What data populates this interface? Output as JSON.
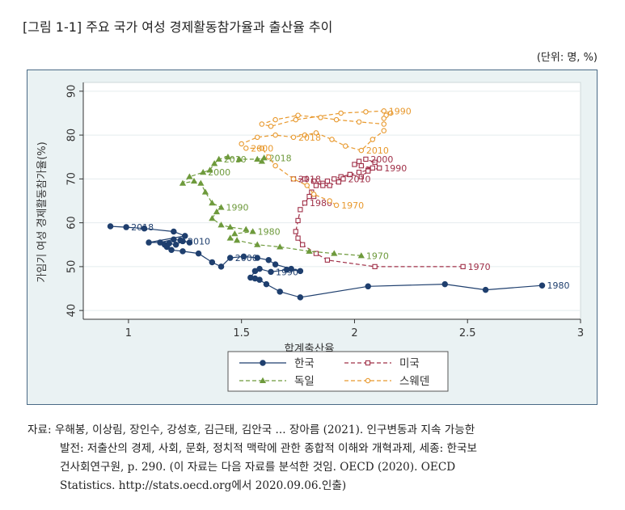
{
  "title": "[그림 1-1] 주요 국가 여성 경제활동참가율과 출산율 추이",
  "unit": "(단위: 명, %)",
  "source": {
    "line1": "자료: 우해봉, 이상림, 장인수, 강성호, 김근태, 김안국 ... 장아름 (2021). 인구변동과 지속 가능한",
    "line2": "발전: 저출산의 경제, 사회, 문화, 정치적 맥락에 관한 종합적 이해와 개혁과제, 세종: 한국보",
    "line3": "건사회연구원, p. 290. (이 자료는 다음 자료를 분석한 것임. OECD (2020). OECD",
    "line4": "Statistics. http://stats.oecd.org에서 2020.09.06.인출)"
  },
  "colors": {
    "korea": "#1f3f6e",
    "usa": "#a03048",
    "germany": "#6e9a3c",
    "sweden": "#e8992e",
    "plot_bg": "#ffffff",
    "frame_bg": "#eaf2f3",
    "grid": "#e4ecee"
  },
  "chart_data": {
    "type": "scatter",
    "xlabel": "합계출산율",
    "ylabel": "가임기 여성 경제활동참가율(%)",
    "xlim": [
      0.8,
      3.0
    ],
    "ylim": [
      38,
      92
    ],
    "xticks": [
      1,
      1.5,
      2,
      2.5,
      3
    ],
    "xtick_labels": [
      "1",
      "1.5",
      "2",
      "2.5",
      "3"
    ],
    "yticks": [
      40,
      50,
      60,
      70,
      80,
      90
    ],
    "ytick_labels": [
      "40",
      "50",
      "60",
      "70",
      "80",
      "90"
    ],
    "grid": true,
    "legend_position": "bottom",
    "series": [
      {
        "name": "한국",
        "color_key": "korea",
        "marker": "circle",
        "filled": true,
        "line": "solid",
        "points": [
          [
            2.83,
            45.7
          ],
          [
            2.58,
            44.7
          ],
          [
            2.4,
            46.0
          ],
          [
            2.06,
            45.5
          ],
          [
            1.76,
            43.0
          ],
          [
            1.67,
            44.3
          ],
          [
            1.61,
            46.0
          ],
          [
            1.58,
            47.0
          ],
          [
            1.56,
            47.3
          ],
          [
            1.54,
            47.5
          ],
          [
            1.56,
            49.0
          ],
          [
            1.58,
            49.5
          ],
          [
            1.63,
            48.8
          ],
          [
            1.7,
            49.3
          ],
          [
            1.76,
            49.0
          ],
          [
            1.72,
            49.5
          ],
          [
            1.65,
            50.5
          ],
          [
            1.62,
            51.5
          ],
          [
            1.57,
            52.0
          ],
          [
            1.51,
            52.3
          ],
          [
            1.45,
            52.0
          ],
          [
            1.41,
            50.0
          ],
          [
            1.37,
            51.0
          ],
          [
            1.31,
            53.0
          ],
          [
            1.24,
            53.5
          ],
          [
            1.19,
            53.8
          ],
          [
            1.17,
            54.5
          ],
          [
            1.16,
            55.0
          ],
          [
            1.18,
            55.3
          ],
          [
            1.21,
            55.0
          ],
          [
            1.24,
            55.8
          ],
          [
            1.27,
            55.5
          ],
          [
            1.23,
            56.0
          ],
          [
            1.2,
            56.2
          ],
          [
            1.14,
            55.5
          ],
          [
            1.09,
            55.5
          ],
          [
            1.25,
            57.0
          ],
          [
            1.2,
            58.0
          ],
          [
            1.07,
            58.7
          ],
          [
            0.99,
            59.0
          ],
          [
            0.92,
            59.2
          ]
        ],
        "labels": [
          {
            "text": "1980",
            "point": 0
          },
          {
            "text": "1990",
            "point": 12
          },
          {
            "text": "2000",
            "point": 20
          },
          {
            "text": "2010",
            "point": 30
          },
          {
            "text": "2018",
            "point": 39
          }
        ]
      },
      {
        "name": "미국",
        "color_key": "usa",
        "marker": "square",
        "filled": false,
        "line": "dash",
        "points": [
          [
            2.48,
            50.0
          ],
          [
            2.09,
            50.0
          ],
          [
            1.88,
            51.5
          ],
          [
            1.83,
            53.0
          ],
          [
            1.77,
            55.0
          ],
          [
            1.75,
            56.5
          ],
          [
            1.74,
            58.0
          ],
          [
            1.75,
            60.5
          ],
          [
            1.76,
            63.0
          ],
          [
            1.78,
            64.5
          ],
          [
            1.8,
            66.0
          ],
          [
            1.82,
            66.0
          ],
          [
            1.81,
            67.0
          ],
          [
            1.83,
            68.5
          ],
          [
            1.86,
            69.0
          ],
          [
            1.88,
            69.5
          ],
          [
            1.91,
            70.0
          ],
          [
            1.94,
            70.5
          ],
          [
            1.98,
            71.0
          ],
          [
            2.02,
            71.5
          ],
          [
            2.06,
            72.0
          ],
          [
            2.08,
            72.5
          ],
          [
            2.03,
            73.0
          ],
          [
            2.0,
            73.3
          ],
          [
            2.02,
            74.0
          ],
          [
            2.05,
            74.5
          ],
          [
            2.09,
            73.8
          ],
          [
            2.11,
            72.5
          ],
          [
            2.06,
            71.8
          ],
          [
            2.03,
            70.5
          ],
          [
            1.98,
            71.0
          ],
          [
            1.95,
            70.0
          ],
          [
            1.93,
            69.3
          ],
          [
            1.89,
            68.5
          ],
          [
            1.86,
            68.5
          ],
          [
            1.82,
            69.5
          ],
          [
            1.78,
            70.0
          ],
          [
            1.73,
            70.0
          ]
        ],
        "labels": [
          {
            "text": "1970",
            "point": 0
          },
          {
            "text": "1980",
            "point": 9
          },
          {
            "text": "2000",
            "point": 25
          },
          {
            "text": "1990",
            "point": 27
          },
          {
            "text": "2010",
            "point": 31
          },
          {
            "text": "2018",
            "point": 37
          }
        ]
      },
      {
        "name": "독일",
        "color_key": "germany",
        "marker": "triangle",
        "filled": true,
        "line": "dash",
        "points": [
          [
            2.03,
            52.5
          ],
          [
            1.91,
            53.0
          ],
          [
            1.8,
            53.5
          ],
          [
            1.67,
            54.5
          ],
          [
            1.57,
            55.0
          ],
          [
            1.48,
            56.0
          ],
          [
            1.45,
            56.5
          ],
          [
            1.47,
            57.5
          ],
          [
            1.55,
            58.0
          ],
          [
            1.52,
            58.5
          ],
          [
            1.45,
            59.0
          ],
          [
            1.41,
            59.5
          ],
          [
            1.37,
            61.0
          ],
          [
            1.39,
            62.5
          ],
          [
            1.41,
            63.5
          ],
          [
            1.37,
            64.5
          ],
          [
            1.34,
            67.0
          ],
          [
            1.32,
            69.0
          ],
          [
            1.29,
            69.5
          ],
          [
            1.24,
            69.0
          ],
          [
            1.27,
            70.5
          ],
          [
            1.33,
            71.5
          ],
          [
            1.36,
            72.0
          ],
          [
            1.38,
            73.5
          ],
          [
            1.4,
            74.5
          ],
          [
            1.44,
            75.0
          ],
          [
            1.49,
            74.5
          ],
          [
            1.57,
            74.5
          ],
          [
            1.6,
            74.8
          ],
          [
            1.59,
            74.0
          ]
        ],
        "labels": [
          {
            "text": "1970",
            "point": 0
          },
          {
            "text": "1980",
            "point": 8
          },
          {
            "text": "1990",
            "point": 14
          },
          {
            "text": "2000",
            "point": 21
          },
          {
            "text": "2010",
            "point": 24
          },
          {
            "text": "2018",
            "point": 28
          }
        ]
      },
      {
        "name": "스웨덴",
        "color_key": "sweden",
        "marker": "circle",
        "filled": false,
        "line": "dash",
        "points": [
          [
            1.92,
            64.0
          ],
          [
            1.89,
            65.0
          ],
          [
            1.82,
            66.5
          ],
          [
            1.79,
            68.5
          ],
          [
            1.73,
            70.0
          ],
          [
            1.65,
            73.0
          ],
          [
            1.62,
            75.0
          ],
          [
            1.59,
            77.0
          ],
          [
            1.52,
            77.0
          ],
          [
            1.5,
            78.0
          ],
          [
            1.57,
            79.5
          ],
          [
            1.65,
            80.0
          ],
          [
            1.73,
            79.5
          ],
          [
            1.78,
            80.0
          ],
          [
            1.83,
            80.5
          ],
          [
            1.9,
            79.0
          ],
          [
            1.96,
            77.5
          ],
          [
            2.03,
            76.5
          ],
          [
            2.08,
            79.0
          ],
          [
            2.13,
            81.0
          ],
          [
            2.13,
            82.5
          ],
          [
            2.02,
            83.0
          ],
          [
            1.92,
            83.5
          ],
          [
            1.85,
            84.0
          ],
          [
            1.75,
            84.5
          ],
          [
            1.65,
            83.5
          ],
          [
            1.59,
            82.5
          ],
          [
            1.63,
            82.0
          ],
          [
            1.74,
            83.5
          ],
          [
            1.94,
            85.0
          ],
          [
            2.05,
            85.3
          ],
          [
            2.13,
            85.5
          ],
          [
            2.16,
            85.0
          ],
          [
            2.14,
            84.5
          ],
          [
            2.13,
            83.8
          ]
        ],
        "labels": [
          {
            "text": "1970",
            "point": 0
          },
          {
            "text": "2000",
            "point": 8
          },
          {
            "text": "2018",
            "point": 12
          },
          {
            "text": "2010",
            "point": 17
          },
          {
            "text": "1990",
            "point": 31
          }
        ]
      }
    ]
  }
}
